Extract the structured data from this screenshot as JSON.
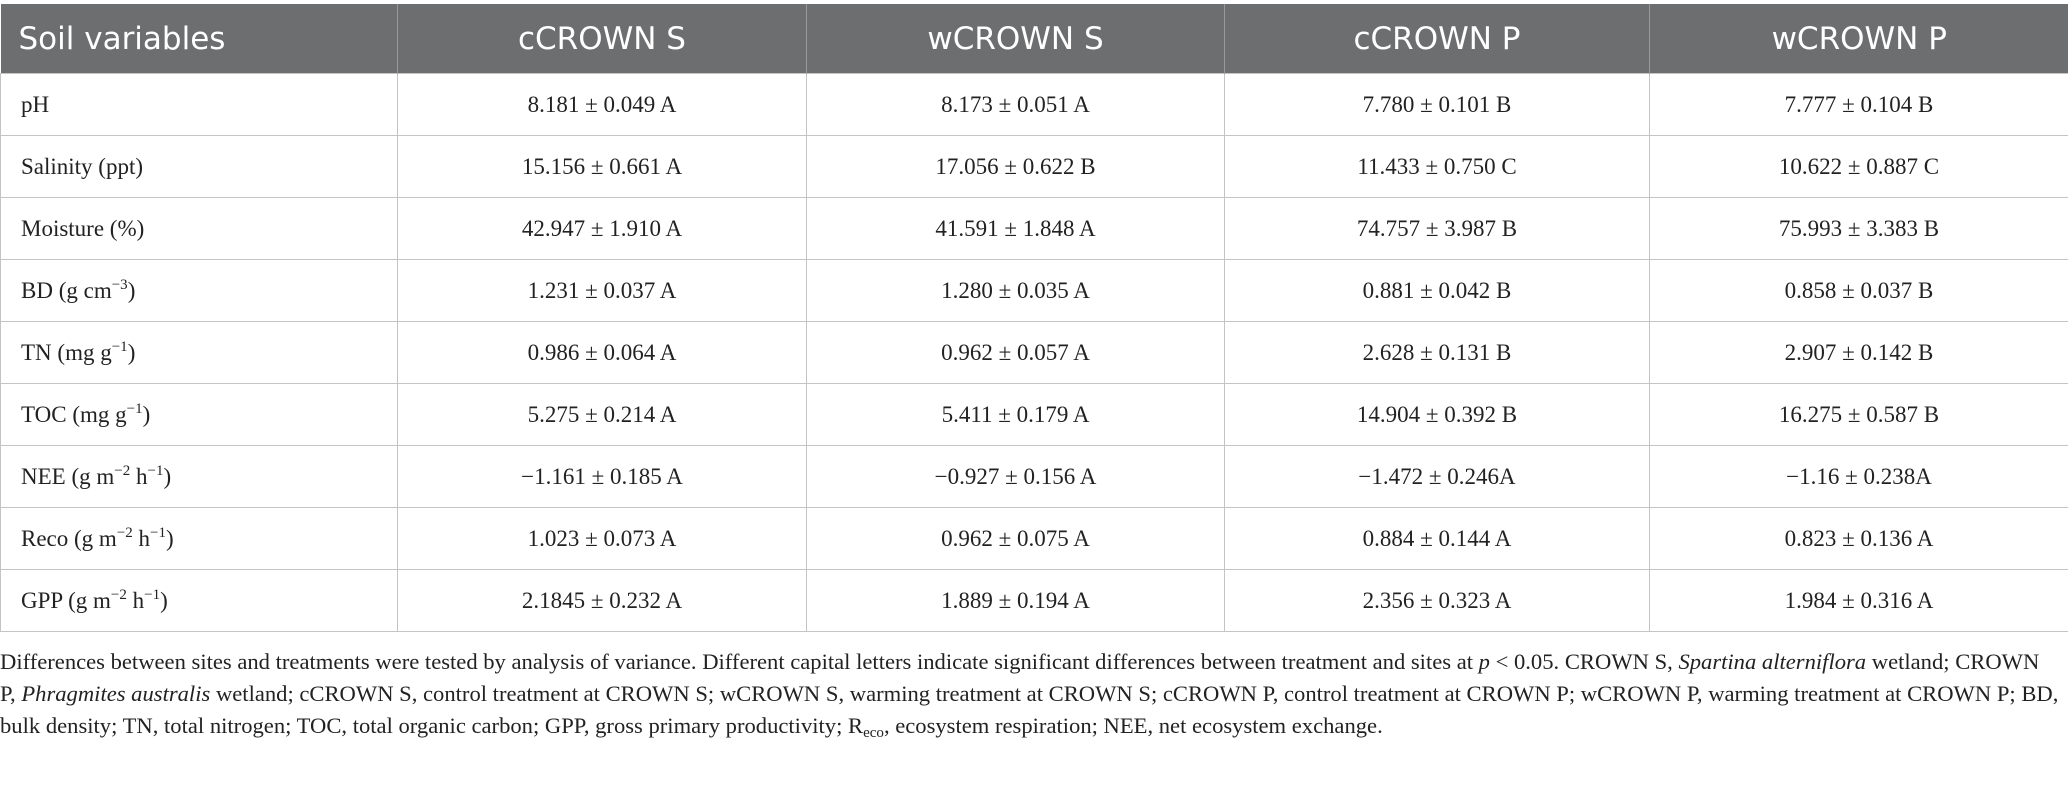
{
  "table": {
    "header": [
      "Soil variables",
      "cCROWN S",
      "wCROWN S",
      "cCROWN P",
      "wCROWN P"
    ],
    "rows": [
      {
        "label": [
          "pH"
        ],
        "cells": [
          "8.181 ± 0.049 A",
          "8.173 ± 0.051 A",
          "7.780 ± 0.101 B",
          "7.777 ± 0.104 B"
        ]
      },
      {
        "label": [
          "Salinity (ppt)"
        ],
        "cells": [
          "15.156 ± 0.661 A",
          "17.056 ± 0.622 B",
          "11.433 ± 0.750 C",
          "10.622 ± 0.887 C"
        ]
      },
      {
        "label": [
          "Moisture (%)"
        ],
        "cells": [
          "42.947 ± 1.910 A",
          "41.591 ± 1.848 A",
          "74.757 ± 3.987 B",
          "75.993 ± 3.383 B"
        ]
      },
      {
        "label": [
          "BD (g cm",
          {
            "sup": "−3"
          },
          ")"
        ],
        "cells": [
          "1.231 ± 0.037 A",
          "1.280 ± 0.035 A",
          "0.881 ± 0.042 B",
          "0.858 ± 0.037 B"
        ]
      },
      {
        "label": [
          "TN (mg g",
          {
            "sup": "−1"
          },
          ")"
        ],
        "cells": [
          "0.986 ± 0.064 A",
          "0.962 ± 0.057 A",
          "2.628 ± 0.131 B",
          "2.907 ± 0.142 B"
        ]
      },
      {
        "label": [
          "TOC (mg g",
          {
            "sup": "−1"
          },
          ")"
        ],
        "cells": [
          "5.275 ± 0.214 A",
          "5.411 ± 0.179 A",
          "14.904 ± 0.392 B",
          "16.275 ± 0.587 B"
        ]
      },
      {
        "label": [
          "NEE (g m",
          {
            "sup": "−2"
          },
          " h",
          {
            "sup": "−1"
          },
          ")"
        ],
        "cells": [
          "−1.161 ± 0.185 A",
          "−0.927 ± 0.156 A",
          "−1.472 ± 0.246A",
          "−1.16 ± 0.238A"
        ]
      },
      {
        "label": [
          "Reco (g m",
          {
            "sup": "−2"
          },
          " h",
          {
            "sup": "−1"
          },
          ")"
        ],
        "cells": [
          "1.023 ± 0.073 A",
          "0.962 ± 0.075 A",
          "0.884 ± 0.144 A",
          "0.823 ± 0.136 A"
        ]
      },
      {
        "label": [
          "GPP (g m",
          {
            "sup": "−2"
          },
          " h",
          {
            "sup": "−1"
          },
          ")"
        ],
        "cells": [
          "2.1845 ± 0.232 A",
          "1.889 ± 0.194 A",
          "2.356 ± 0.323 A",
          "1.984 ± 0.316 A"
        ]
      }
    ]
  },
  "footnote": [
    "Differences between sites and treatments were tested by analysis of variance. Different capital letters indicate significant differences between treatment and sites at ",
    {
      "i": "p"
    },
    " < 0.05. CROWN S, ",
    {
      "i": "Spartina alterniflora"
    },
    " wetland; CROWN P, ",
    {
      "i": "Phragmites australis"
    },
    " wetland; cCROWN S, control treatment at CROWN S; wCROWN S, warming treatment at CROWN S; cCROWN P, control treatment at CROWN P; wCROWN P, warming treatment at CROWN P; BD, bulk density; TN, total nitrogen; TOC, total organic carbon; GPP, gross primary productivity; R",
    {
      "sub": "eco"
    },
    ", ecosystem respiration; NEE, net ecosystem exchange."
  ]
}
